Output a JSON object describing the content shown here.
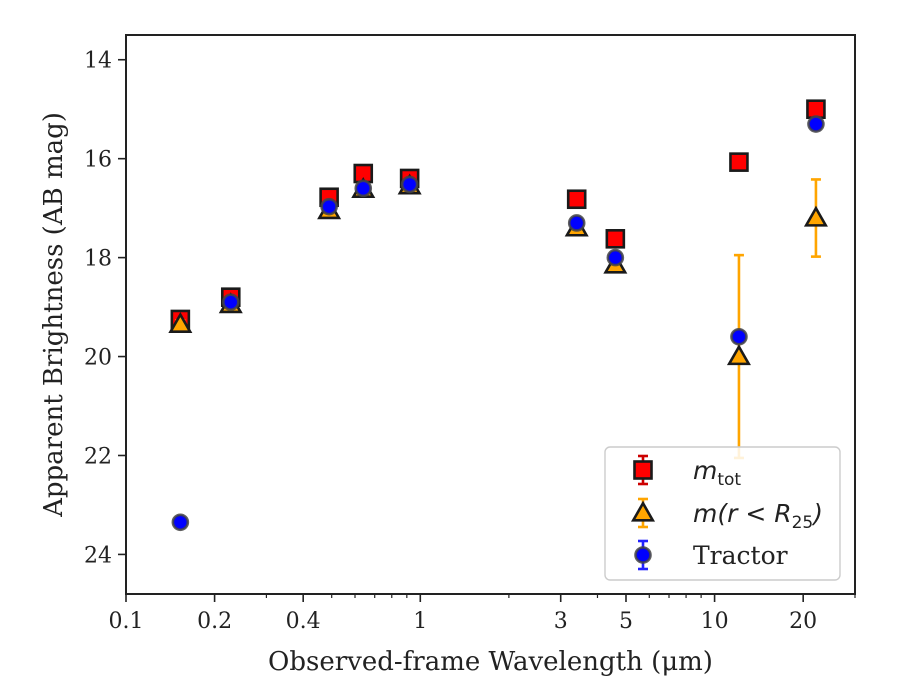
{
  "chart_data": {
    "type": "scatter",
    "xlabel": "Observed-frame Wavelength (μm)",
    "ylabel": "Apparent Brightness (AB mag)",
    "xscale": "log",
    "xlim": [
      0.1,
      30
    ],
    "ylim": [
      24.8,
      13.5
    ],
    "y_inverted": true,
    "x_ticks": [
      {
        "value": 0.1,
        "label": "0.1"
      },
      {
        "value": 0.2,
        "label": "0.2"
      },
      {
        "value": 0.4,
        "label": "0.4"
      },
      {
        "value": 1,
        "label": "1"
      },
      {
        "value": 3,
        "label": "3"
      },
      {
        "value": 5,
        "label": "5"
      },
      {
        "value": 10,
        "label": "10"
      },
      {
        "value": 20,
        "label": "20"
      }
    ],
    "y_ticks": [
      {
        "value": 14,
        "label": "14"
      },
      {
        "value": 16,
        "label": "16"
      },
      {
        "value": 18,
        "label": "18"
      },
      {
        "value": 20,
        "label": "20"
      },
      {
        "value": 22,
        "label": "22"
      },
      {
        "value": 24,
        "label": "24"
      }
    ],
    "grid": false,
    "legend_position": "lower-right",
    "series": [
      {
        "name": "m_tot",
        "legend_math": "m",
        "legend_sub": "tot",
        "marker": "square",
        "fill": "#ff0000",
        "edge": "#1a1a1a",
        "error_color": "#cc0000",
        "x": [
          0.153,
          0.227,
          0.49,
          0.64,
          0.92,
          3.4,
          4.6,
          12.1,
          22.1
        ],
        "y": [
          19.25,
          18.8,
          16.78,
          16.3,
          16.4,
          16.82,
          17.62,
          16.07,
          15.0
        ],
        "yerr": [
          0.05,
          0.05,
          0.02,
          0.02,
          0.02,
          0.03,
          0.03,
          0.1,
          0.1
        ]
      },
      {
        "name": "m(r < R25)",
        "legend_math": "m(r < R",
        "legend_sub": "25",
        "legend_tail": ")",
        "marker": "triangle",
        "fill": "#ffa500",
        "edge": "#1a1a1a",
        "error_color": "#ffa500",
        "x": [
          0.153,
          0.227,
          0.49,
          0.64,
          0.92,
          3.4,
          4.6,
          12.1,
          22.1
        ],
        "y": [
          19.35,
          18.95,
          17.05,
          16.62,
          16.55,
          17.4,
          18.15,
          20.0,
          17.2
        ],
        "yerr": [
          0.08,
          0.06,
          0.03,
          0.03,
          0.03,
          0.05,
          0.08,
          2.05,
          0.78
        ]
      },
      {
        "name": "Tractor",
        "marker": "circle",
        "fill": "#0000ff",
        "edge": "#444444",
        "error_color": "#2222ff",
        "x": [
          0.153,
          0.227,
          0.49,
          0.64,
          0.92,
          3.4,
          4.6,
          12.1,
          22.1
        ],
        "y": [
          23.35,
          18.9,
          16.97,
          16.6,
          16.52,
          17.3,
          18.0,
          19.6,
          15.3
        ],
        "yerr": [
          0.05,
          0.05,
          0.02,
          0.02,
          0.02,
          0.03,
          0.04,
          0.1,
          0.1
        ]
      }
    ]
  }
}
